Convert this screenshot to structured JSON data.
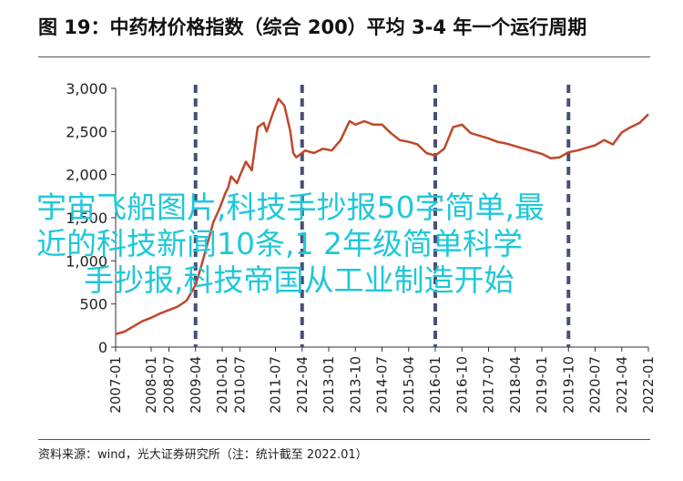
{
  "title": "图 19：中药材价格指数（综合 200）平均 3-4 年一个运行周期",
  "source": "资料来源：wind，光大证券研究所（注：统计截至 2022.01）",
  "overlay": {
    "line1": "宇宙飞船图片,科技手抄报50字简单,最",
    "line2": "近的科技新闻10条,1 2年级简单科学",
    "line3": "手抄报,科技帝国从工业制造开始"
  },
  "chart_data": {
    "type": "line",
    "title": "图 19：中药材价格指数（综合 200）平均 3-4 年一个运行周期",
    "xlabel": "",
    "ylabel": "",
    "ylim": [
      0,
      3000
    ],
    "xlim": [
      "2007-01",
      "2022-01"
    ],
    "yticks": [
      "0",
      "500",
      "1,000",
      "1,500",
      "2,000",
      "2,500",
      "3,000"
    ],
    "xticks": [
      "2007-01",
      "2008-01",
      "2008-07",
      "2009-04",
      "2010-01",
      "2010-07",
      "2011-07",
      "2012-04",
      "2013-01",
      "2013-10",
      "2014-07",
      "2015-04",
      "2016-01",
      "2016-10",
      "2017-07",
      "2018-04",
      "2019-01",
      "2019-10",
      "2020-07",
      "2021-04",
      "2022-01"
    ],
    "cycle_markers": [
      "2009-04",
      "2012-04",
      "2016-01",
      "2019-10"
    ],
    "grid": false,
    "colors": {
      "line": "#c0472a",
      "markers": "#4a4f78",
      "axis": "#333333"
    },
    "series": [
      {
        "name": "",
        "points": [
          [
            "2007-01",
            150
          ],
          [
            "2007-04",
            180
          ],
          [
            "2007-07",
            240
          ],
          [
            "2007-10",
            300
          ],
          [
            "2008-01",
            340
          ],
          [
            "2008-04",
            390
          ],
          [
            "2008-07",
            430
          ],
          [
            "2008-10",
            470
          ],
          [
            "2009-01",
            540
          ],
          [
            "2009-04",
            720
          ],
          [
            "2009-06",
            950
          ],
          [
            "2009-08",
            1200
          ],
          [
            "2009-10",
            1450
          ],
          [
            "2009-12",
            1600
          ],
          [
            "2010-02",
            1780
          ],
          [
            "2010-03",
            1850
          ],
          [
            "2010-04",
            1980
          ],
          [
            "2010-06",
            1900
          ],
          [
            "2010-07",
            1990
          ],
          [
            "2010-09",
            2150
          ],
          [
            "2010-11",
            2050
          ],
          [
            "2011-01",
            2550
          ],
          [
            "2011-03",
            2600
          ],
          [
            "2011-04",
            2500
          ],
          [
            "2011-06",
            2700
          ],
          [
            "2011-08",
            2880
          ],
          [
            "2011-10",
            2800
          ],
          [
            "2011-12",
            2500
          ],
          [
            "2012-01",
            2250
          ],
          [
            "2012-02",
            2200
          ],
          [
            "2012-05",
            2280
          ],
          [
            "2012-08",
            2250
          ],
          [
            "2012-11",
            2300
          ],
          [
            "2013-02",
            2280
          ],
          [
            "2013-05",
            2400
          ],
          [
            "2013-08",
            2620
          ],
          [
            "2013-10",
            2580
          ],
          [
            "2014-01",
            2620
          ],
          [
            "2014-04",
            2580
          ],
          [
            "2014-07",
            2580
          ],
          [
            "2014-10",
            2480
          ],
          [
            "2015-01",
            2400
          ],
          [
            "2015-04",
            2380
          ],
          [
            "2015-07",
            2350
          ],
          [
            "2015-10",
            2250
          ],
          [
            "2016-01",
            2220
          ],
          [
            "2016-04",
            2300
          ],
          [
            "2016-07",
            2550
          ],
          [
            "2016-10",
            2580
          ],
          [
            "2017-01",
            2480
          ],
          [
            "2017-04",
            2450
          ],
          [
            "2017-07",
            2420
          ],
          [
            "2017-10",
            2380
          ],
          [
            "2018-01",
            2360
          ],
          [
            "2018-04",
            2330
          ],
          [
            "2018-07",
            2300
          ],
          [
            "2019-01",
            2240
          ],
          [
            "2019-04",
            2190
          ],
          [
            "2019-07",
            2200
          ],
          [
            "2019-10",
            2260
          ],
          [
            "2020-01",
            2280
          ],
          [
            "2020-04",
            2310
          ],
          [
            "2020-07",
            2340
          ],
          [
            "2020-10",
            2400
          ],
          [
            "2021-01",
            2350
          ],
          [
            "2021-04",
            2490
          ],
          [
            "2021-07",
            2550
          ],
          [
            "2021-10",
            2600
          ],
          [
            "2022-01",
            2700
          ]
        ]
      }
    ]
  }
}
